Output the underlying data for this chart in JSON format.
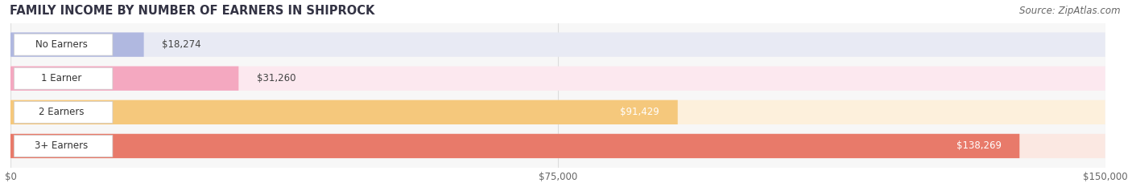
{
  "title": "FAMILY INCOME BY NUMBER OF EARNERS IN SHIPROCK",
  "source": "Source: ZipAtlas.com",
  "categories": [
    "No Earners",
    "1 Earner",
    "2 Earners",
    "3+ Earners"
  ],
  "values": [
    18274,
    31260,
    91429,
    138269
  ],
  "labels": [
    "$18,274",
    "$31,260",
    "$91,429",
    "$138,269"
  ],
  "bar_colors": [
    "#b0b8e0",
    "#f4a8c0",
    "#f5c87c",
    "#e87a6a"
  ],
  "bg_colors": [
    "#e8eaf4",
    "#fce8ef",
    "#fdf0dc",
    "#fbe8e2"
  ],
  "xlim": [
    0,
    150000
  ],
  "xticks": [
    0,
    75000,
    150000
  ],
  "xticklabels": [
    "$0",
    "$75,000",
    "$150,000"
  ],
  "title_fontsize": 10.5,
  "source_fontsize": 8.5,
  "label_inside_threshold": 60000,
  "background_color": "#ffffff",
  "plot_bg_color": "#f7f7f7"
}
